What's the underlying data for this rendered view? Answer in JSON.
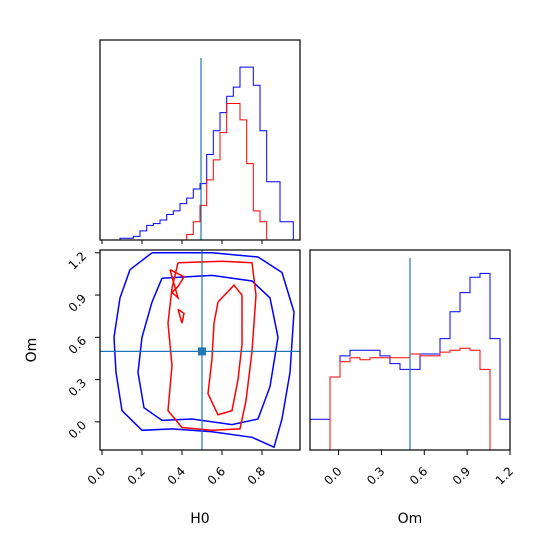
{
  "figure": {
    "type": "corner-plot",
    "params": [
      "H0",
      "Om"
    ]
  },
  "colors": {
    "blue": "#0000ff",
    "red": "#ff0000",
    "truth": "#1f77b4",
    "axis": "#000000"
  },
  "chart_data": [
    {
      "panel": "H0-marginal",
      "type": "histogram",
      "xlim": [
        0.0,
        0.99
      ],
      "bin_edges": [
        0.0,
        0.033,
        0.066,
        0.099,
        0.132,
        0.165,
        0.198,
        0.231,
        0.264,
        0.297,
        0.33,
        0.363,
        0.396,
        0.429,
        0.462,
        0.495,
        0.528,
        0.561,
        0.594,
        0.627,
        0.66,
        0.693,
        0.726,
        0.759,
        0.792,
        0.825,
        0.858,
        0.891,
        0.924,
        0.957,
        0.99
      ],
      "truth": 0.5,
      "series": [
        {
          "color": "blue",
          "density": [
            0,
            0,
            0,
            0.01,
            0.01,
            0.02,
            0.05,
            0.08,
            0.09,
            0.11,
            0.14,
            0.16,
            0.2,
            0.23,
            0.28,
            0.31,
            0.47,
            0.6,
            0.7,
            0.79,
            0.84,
            0.95,
            0.95,
            0.85,
            0.6,
            0.32,
            0.32,
            0.1,
            0.1,
            0
          ]
        },
        {
          "color": "red",
          "density": [
            0,
            0,
            0,
            0,
            0,
            0,
            0,
            0,
            0,
            0,
            0,
            0,
            0,
            0.03,
            0.1,
            0.19,
            0.33,
            0.44,
            0.59,
            0.75,
            0.75,
            0.66,
            0.42,
            0.16,
            0.1,
            0,
            0,
            0,
            0,
            0
          ]
        }
      ]
    },
    {
      "panel": "Om-marginal",
      "type": "histogram",
      "xlim": [
        -0.2,
        1.2
      ],
      "xticks": [
        "0.0",
        "0.3",
        "0.6",
        "0.9",
        "1.2"
      ],
      "xlabel": "Om",
      "truth": 0.5,
      "bin_edges": [
        -0.2,
        -0.13,
        -0.06,
        0.01,
        0.08,
        0.15,
        0.22,
        0.29,
        0.36,
        0.43,
        0.5,
        0.57,
        0.64,
        0.71,
        0.78,
        0.85,
        0.92,
        0.99,
        1.06,
        1.13,
        1.2
      ],
      "series": [
        {
          "color": "blue",
          "density": [
            0.16,
            0.16,
            0.38,
            0.49,
            0.52,
            0.52,
            0.52,
            0.49,
            0.45,
            0.42,
            0.42,
            0.5,
            0.5,
            0.58,
            0.72,
            0.82,
            0.9,
            0.92,
            0.58,
            0.16
          ]
        },
        {
          "color": "red",
          "density": [
            0,
            0,
            0.38,
            0.46,
            0.48,
            0.47,
            0.48,
            0.48,
            0.48,
            0.48,
            0.5,
            0.49,
            0.49,
            0.51,
            0.52,
            0.53,
            0.52,
            0.42,
            0,
            0
          ]
        }
      ]
    },
    {
      "panel": "H0-Om-joint",
      "type": "contour",
      "xlim": [
        -0.01,
        0.99
      ],
      "ylim": [
        -0.2,
        1.22
      ],
      "xticks": [
        "0.0",
        "0.2",
        "0.4",
        "0.6",
        "0.8"
      ],
      "yticks": [
        "0.0",
        "0.3",
        "0.6",
        "0.9",
        "1.2"
      ],
      "xlabel": "H0",
      "ylabel": "Om",
      "truth": [
        0.5,
        0.5
      ],
      "contours": [
        {
          "color": "blue",
          "points": [
            [
              0.25,
              1.2
            ],
            [
              0.55,
              1.2
            ],
            [
              0.78,
              1.17
            ],
            [
              0.9,
              1.06
            ],
            [
              0.96,
              0.78
            ],
            [
              0.94,
              0.35
            ],
            [
              0.9,
              0.02
            ],
            [
              0.86,
              -0.18
            ],
            [
              0.75,
              -0.11
            ],
            [
              0.55,
              -0.07
            ],
            [
              0.35,
              -0.05
            ],
            [
              0.2,
              -0.06
            ],
            [
              0.1,
              0.08
            ],
            [
              0.07,
              0.35
            ],
            [
              0.06,
              0.6
            ],
            [
              0.09,
              0.88
            ],
            [
              0.14,
              1.08
            ],
            [
              0.25,
              1.2
            ]
          ]
        },
        {
          "color": "blue",
          "points": [
            [
              0.3,
              1.02
            ],
            [
              0.55,
              1.04
            ],
            [
              0.75,
              1.0
            ],
            [
              0.84,
              0.88
            ],
            [
              0.88,
              0.6
            ],
            [
              0.84,
              0.25
            ],
            [
              0.78,
              0.02
            ],
            [
              0.65,
              -0.02
            ],
            [
              0.45,
              0.02
            ],
            [
              0.3,
              0.01
            ],
            [
              0.21,
              0.1
            ],
            [
              0.18,
              0.35
            ],
            [
              0.2,
              0.6
            ],
            [
              0.25,
              0.85
            ],
            [
              0.3,
              1.02
            ]
          ]
        },
        {
          "color": "red",
          "points": [
            [
              0.38,
              1.13
            ],
            [
              0.6,
              1.14
            ],
            [
              0.75,
              1.13
            ],
            [
              0.77,
              0.9
            ],
            [
              0.75,
              0.5
            ],
            [
              0.72,
              0.15
            ],
            [
              0.69,
              -0.05
            ],
            [
              0.55,
              -0.06
            ],
            [
              0.4,
              -0.04
            ],
            [
              0.33,
              0.08
            ],
            [
              0.35,
              0.4
            ],
            [
              0.33,
              0.7
            ],
            [
              0.35,
              0.95
            ],
            [
              0.38,
              1.13
            ]
          ]
        },
        {
          "color": "red",
          "points": [
            [
              0.58,
              0.85
            ],
            [
              0.66,
              0.97
            ],
            [
              0.7,
              0.9
            ],
            [
              0.7,
              0.55
            ],
            [
              0.68,
              0.3
            ],
            [
              0.65,
              0.08
            ],
            [
              0.58,
              0.05
            ],
            [
              0.53,
              0.2
            ],
            [
              0.55,
              0.45
            ],
            [
              0.56,
              0.7
            ],
            [
              0.58,
              0.85
            ]
          ]
        },
        {
          "color": "red",
          "points": [
            [
              0.34,
              1.08
            ],
            [
              0.41,
              1.03
            ],
            [
              0.38,
              0.96
            ],
            [
              0.35,
              0.92
            ],
            [
              0.38,
              0.88
            ],
            [
              0.34,
              1.08
            ]
          ]
        },
        {
          "color": "red",
          "points": [
            [
              0.38,
              0.8
            ],
            [
              0.41,
              0.77
            ],
            [
              0.4,
              0.7
            ],
            [
              0.38,
              0.8
            ]
          ]
        }
      ]
    }
  ]
}
